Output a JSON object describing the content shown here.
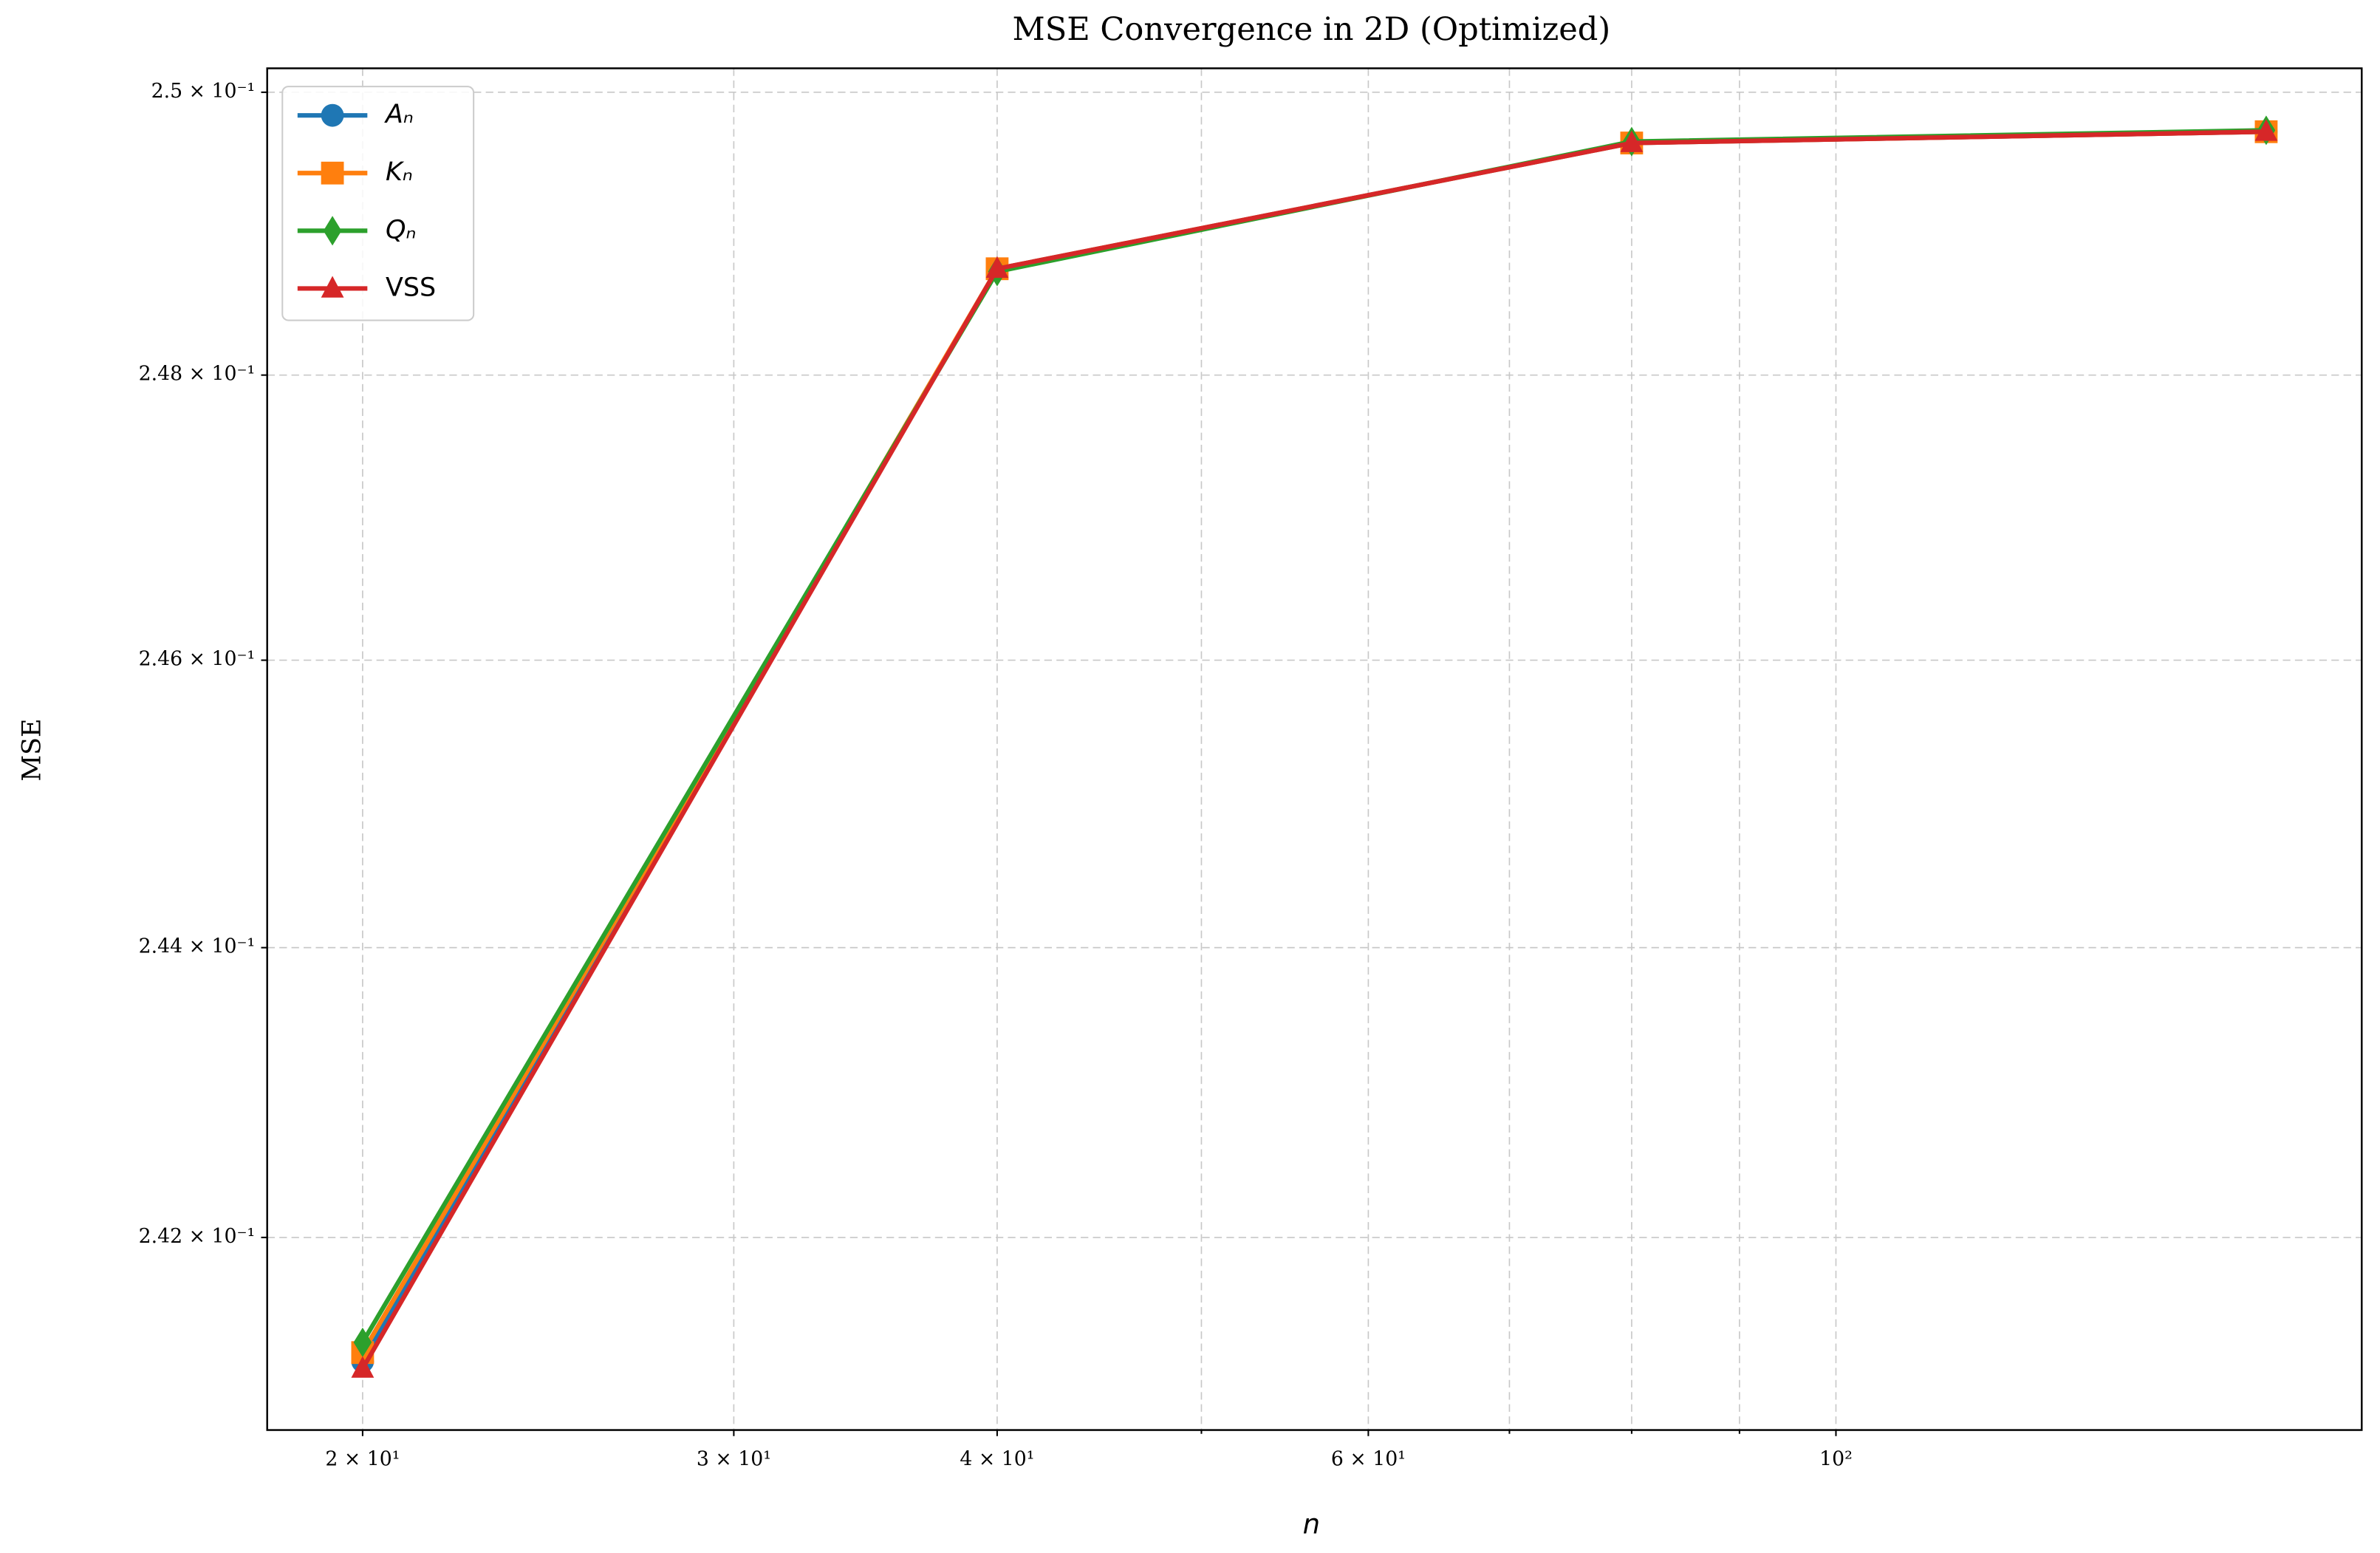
{
  "chart_data": {
    "type": "line",
    "title": "MSE Convergence in 2D (Optimized)",
    "xlabel": "n",
    "ylabel": "MSE",
    "x": [
      20,
      40,
      80,
      160
    ],
    "series": [
      {
        "name": "Aₙ",
        "color": "#1f77b4",
        "marker": "circle",
        "values": [
          0.24115,
          0.24875,
          0.24964,
          0.24972
        ]
      },
      {
        "name": "Kₙ",
        "color": "#ff7f0e",
        "marker": "square",
        "values": [
          0.24121,
          0.24875,
          0.24964,
          0.24972
        ]
      },
      {
        "name": "Qₙ",
        "color": "#2ca02c",
        "marker": "diamond",
        "values": [
          0.24128,
          0.24873,
          0.24965,
          0.24973
        ]
      },
      {
        "name": "VSS",
        "color": "#d62728",
        "marker": "triangle",
        "values": [
          0.2411,
          0.24875,
          0.24964,
          0.24972
        ]
      }
    ],
    "xscale": "log",
    "yscale": "log",
    "xlim": [
      18.02,
      177.6
    ],
    "ylim": [
      0.24068,
      0.25017
    ],
    "xticks": [
      {
        "value": 20,
        "label": "2 × 10¹"
      },
      {
        "value": 30,
        "label": "3 × 10¹"
      },
      {
        "value": 40,
        "label": "4 × 10¹"
      },
      {
        "value": 60,
        "label": "6 × 10¹"
      },
      {
        "value": 100,
        "label": "10²"
      }
    ],
    "xminor": [
      50,
      70,
      80,
      90
    ],
    "yticks": [
      {
        "value": 0.242,
        "label": "2.42 × 10⁻¹"
      },
      {
        "value": 0.244,
        "label": "2.44 × 10⁻¹"
      },
      {
        "value": 0.246,
        "label": "2.46 × 10⁻¹"
      },
      {
        "value": 0.248,
        "label": "2.48 × 10⁻¹"
      },
      {
        "value": 0.25,
        "label": "2.5 × 10⁻¹"
      }
    ],
    "grid": true,
    "legend": "upper left"
  }
}
